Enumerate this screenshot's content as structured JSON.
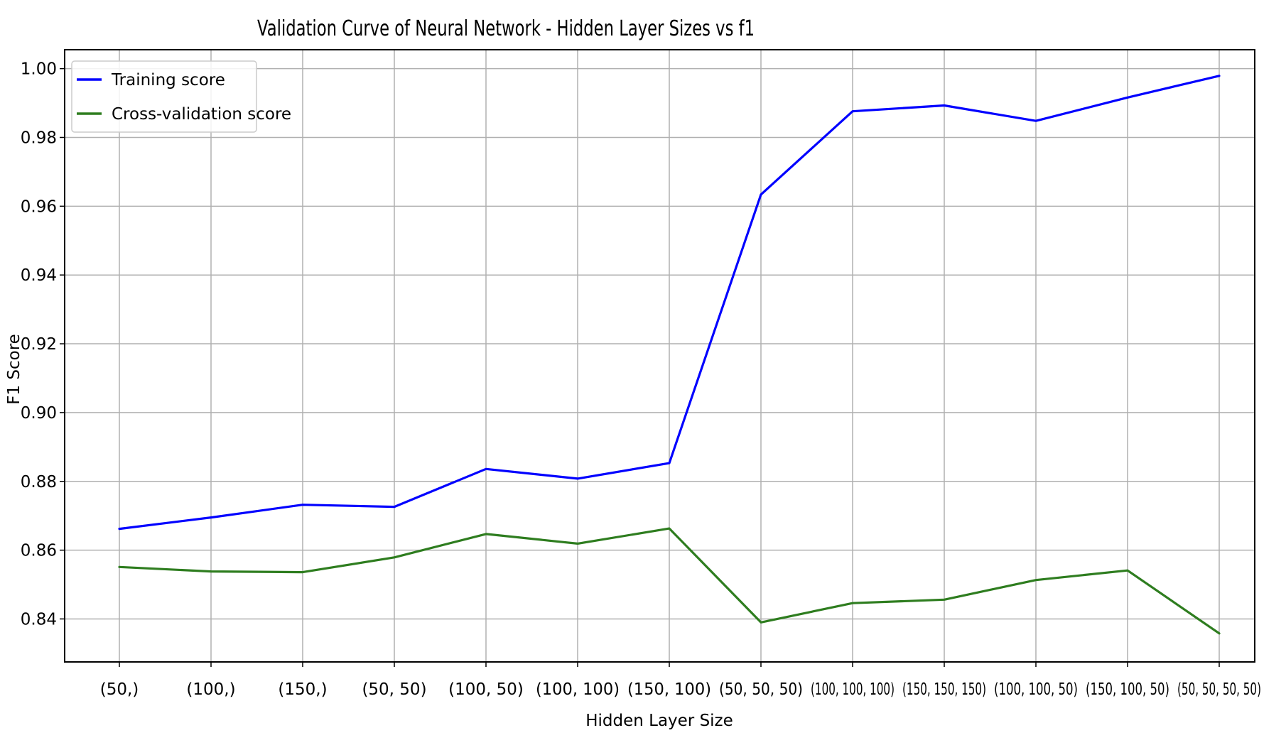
{
  "chart_data": {
    "type": "line",
    "title": "Validation Curve of Neural Network - Hidden Layer Sizes vs f1",
    "xlabel": "Hidden Layer Size",
    "ylabel": "F1 Score",
    "categories": [
      "(50,)",
      "(100,)",
      "(150,)",
      "(50, 50)",
      "(100, 50)",
      "(100, 100)",
      "(150, 100)",
      "(50, 50, 50)",
      "(100, 100, 100)",
      "(150, 150, 150)",
      "(100, 100, 50)",
      "(150, 100, 50)",
      "(50, 50, 50, 50)"
    ],
    "ylim": [
      0.8275,
      1.0055
    ],
    "yticks": [
      "0.84",
      "0.86",
      "0.88",
      "0.90",
      "0.92",
      "0.94",
      "0.96",
      "0.98",
      "1.00"
    ],
    "grid": true,
    "legend_position": "top-left",
    "series": [
      {
        "name": "Training score",
        "color": "#0000ff",
        "values": [
          0.8662,
          0.8695,
          0.8732,
          0.8726,
          0.8836,
          0.8808,
          0.8853,
          0.9634,
          0.9876,
          0.9893,
          0.9848,
          0.9916,
          0.9979
        ]
      },
      {
        "name": "Cross-validation score",
        "color": "#2e7d1f",
        "values": [
          0.8551,
          0.8538,
          0.8536,
          0.8579,
          0.8647,
          0.8619,
          0.8663,
          0.839,
          0.8446,
          0.8456,
          0.8513,
          0.8541,
          0.8358
        ]
      }
    ]
  }
}
